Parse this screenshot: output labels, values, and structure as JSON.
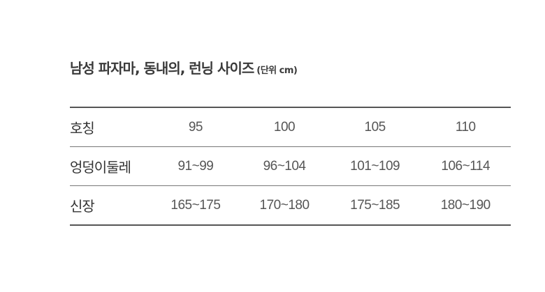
{
  "title": {
    "main": "남성 파자마, 동내의, 런닝 사이즈",
    "unit": "(단위 cm)"
  },
  "table": {
    "rows": [
      {
        "label": "호칭",
        "values": [
          "95",
          "100",
          "105",
          "110"
        ]
      },
      {
        "label": "엉덩이둘레",
        "values": [
          "91~99",
          "96~104",
          "101~109",
          "106~114"
        ]
      },
      {
        "label": "신장",
        "values": [
          "165~175",
          "170~180",
          "175~185",
          "180~190"
        ]
      }
    ]
  }
}
